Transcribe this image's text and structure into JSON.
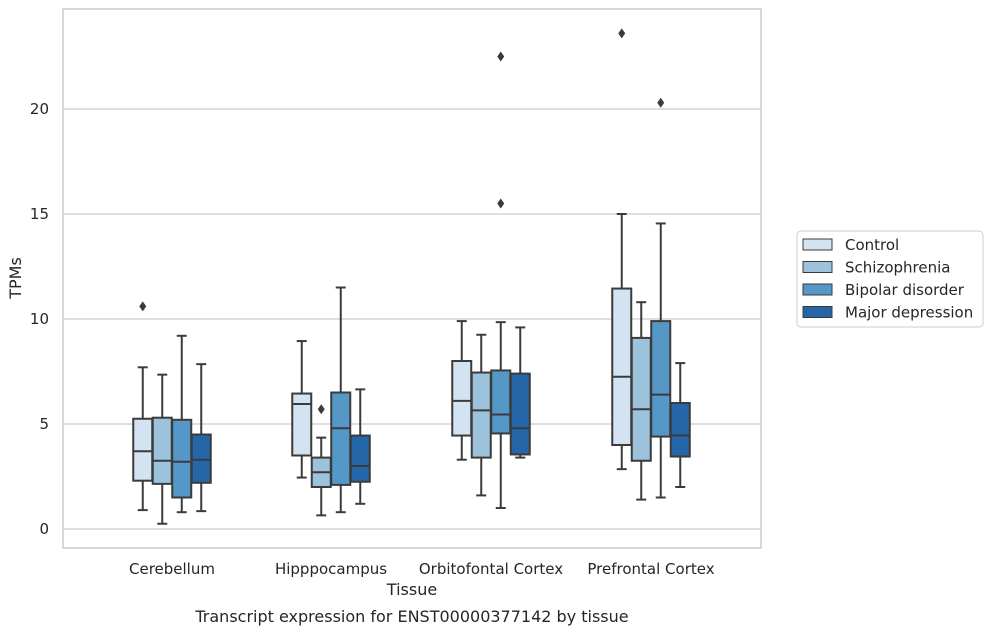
{
  "chart_data": {
    "type": "box",
    "title": "",
    "caption": "Transcript expression for ENST00000377142 by tissue",
    "xlabel": "Tissue",
    "ylabel": "TPMs",
    "ylim": [
      -0.8,
      24.8
    ],
    "yticks": [
      0,
      5,
      10,
      15,
      20
    ],
    "grid": "horizontal",
    "legend_position": "right",
    "categories": [
      "Cerebellum",
      "Hipppocampus",
      "Orbitofontal Cortex",
      "Prefrontal Cortex"
    ],
    "series": [
      {
        "name": "Control",
        "color": "#d4e3f1",
        "boxes": [
          {
            "whislo": 0.9,
            "q1": 2.3,
            "med": 3.7,
            "q3": 5.25,
            "whishi": 7.7,
            "fliers": [
              10.6
            ]
          },
          {
            "whislo": 2.45,
            "q1": 3.5,
            "med": 5.95,
            "q3": 6.45,
            "whishi": 8.95,
            "fliers": []
          },
          {
            "whislo": 3.3,
            "q1": 4.45,
            "med": 6.1,
            "q3": 8.0,
            "whishi": 9.9,
            "fliers": []
          },
          {
            "whislo": 2.85,
            "q1": 4.0,
            "med": 7.25,
            "q3": 11.45,
            "whishi": 15.0,
            "fliers": [
              23.6
            ]
          }
        ]
      },
      {
        "name": "Schizophrenia",
        "color": "#9dc2dc",
        "boxes": [
          {
            "whislo": 0.25,
            "q1": 2.15,
            "med": 3.25,
            "q3": 5.3,
            "whishi": 7.35,
            "fliers": []
          },
          {
            "whislo": 0.65,
            "q1": 2.0,
            "med": 2.7,
            "q3": 3.4,
            "whishi": 4.35,
            "fliers": [
              5.7
            ]
          },
          {
            "whislo": 1.6,
            "q1": 3.4,
            "med": 5.65,
            "q3": 7.45,
            "whishi": 9.25,
            "fliers": []
          },
          {
            "whislo": 1.4,
            "q1": 3.25,
            "med": 5.7,
            "q3": 9.1,
            "whishi": 10.8,
            "fliers": []
          }
        ]
      },
      {
        "name": "Bipolar disorder",
        "color": "#5597c6",
        "boxes": [
          {
            "whislo": 0.8,
            "q1": 1.5,
            "med": 3.2,
            "q3": 5.2,
            "whishi": 9.2,
            "fliers": []
          },
          {
            "whislo": 0.8,
            "q1": 2.1,
            "med": 4.8,
            "q3": 6.5,
            "whishi": 11.5,
            "fliers": []
          },
          {
            "whislo": 1.0,
            "q1": 4.55,
            "med": 5.45,
            "q3": 7.55,
            "whishi": 9.85,
            "fliers": [
              15.5,
              22.5
            ]
          },
          {
            "whislo": 1.5,
            "q1": 4.4,
            "med": 6.4,
            "q3": 9.9,
            "whishi": 14.55,
            "fliers": [
              20.3
            ]
          }
        ]
      },
      {
        "name": "Major depression",
        "color": "#2466a8",
        "boxes": [
          {
            "whislo": 0.85,
            "q1": 2.2,
            "med": 3.3,
            "q3": 4.5,
            "whishi": 7.85,
            "fliers": []
          },
          {
            "whislo": 1.2,
            "q1": 2.25,
            "med": 3.0,
            "q3": 4.45,
            "whishi": 6.65,
            "fliers": []
          },
          {
            "whislo": 3.4,
            "q1": 3.55,
            "med": 4.8,
            "q3": 7.4,
            "whishi": 9.6,
            "fliers": []
          },
          {
            "whislo": 2.0,
            "q1": 3.45,
            "med": 4.45,
            "q3": 6.0,
            "whishi": 7.9,
            "fliers": []
          }
        ]
      }
    ]
  }
}
